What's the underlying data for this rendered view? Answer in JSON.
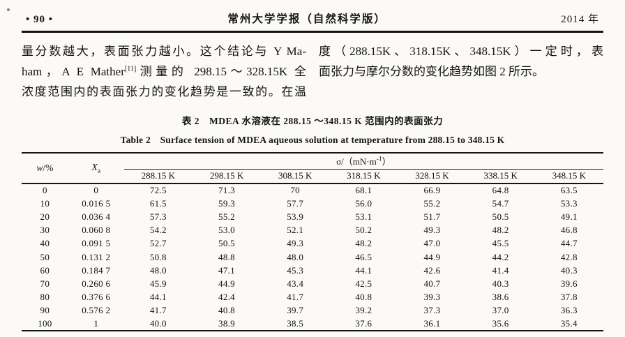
{
  "header": {
    "page_number": "• 90 •",
    "journal_title": "常州大学学报（自然科学版）",
    "year": "2014 年"
  },
  "body": {
    "left": {
      "line1": "量分数越大，表面张力越小。这个结论与 Y Ma-",
      "line2_pre": "ham，A E Mather",
      "line2_sup": "[11]",
      "line2_post": "测量的 298.15～328.15K 全",
      "line3": "浓度范围内的表面张力的变化趋势是一致的。在温"
    },
    "right": {
      "line1": "度（288.15K、318.15K、348.15K）一定时，表",
      "line2": "面张力与摩尔分数的变化趋势如图 2 所示。"
    }
  },
  "table": {
    "caption_zh": "表 2　MDEA 水溶液在 288.15 ～348.15 K 范围内的表面张力",
    "caption_en": "Table 2　Surface tension of MDEA aqueous solution at temperature from 288.15 to 348.15 K",
    "header": {
      "w_base": "w",
      "w_unit": "/%",
      "x_base": "X",
      "x_sub": "a",
      "sigma_pre": "σ/（mN·m",
      "sigma_sup": "-1",
      "sigma_post": "）"
    },
    "temp_headers": [
      "288.15 K",
      "298.15 K",
      "308.15 K",
      "318.15 K",
      "328.15 K",
      "338.15 K",
      "348.15 K"
    ],
    "rows": [
      [
        "0",
        "0",
        "72.5",
        "71.3",
        "70",
        "68.1",
        "66.9",
        "64.8",
        "63.5"
      ],
      [
        "10",
        "0.016 5",
        "61.5",
        "59.3",
        "57.7",
        "56.0",
        "55.2",
        "54.7",
        "53.3"
      ],
      [
        "20",
        "0.036 4",
        "57.3",
        "55.2",
        "53.9",
        "53.1",
        "51.7",
        "50.5",
        "49.1"
      ],
      [
        "30",
        "0.060 8",
        "54.2",
        "53.0",
        "52.1",
        "50.2",
        "49.3",
        "48.2",
        "46.8"
      ],
      [
        "40",
        "0.091 5",
        "52.7",
        "50.5",
        "49.3",
        "48.2",
        "47.0",
        "45.5",
        "44.7"
      ],
      [
        "50",
        "0.131 2",
        "50.8",
        "48.8",
        "48.0",
        "46.5",
        "44.9",
        "44.2",
        "42.8"
      ],
      [
        "60",
        "0.184 7",
        "48.0",
        "47.1",
        "45.3",
        "44.1",
        "42.6",
        "41.4",
        "40.3"
      ],
      [
        "70",
        "0.260 6",
        "45.9",
        "44.9",
        "43.4",
        "42.5",
        "40.7",
        "40.3",
        "39.6"
      ],
      [
        "80",
        "0.376 6",
        "44.1",
        "42.4",
        "41.7",
        "40.8",
        "39.3",
        "38.6",
        "37.8"
      ],
      [
        "90",
        "0.576 2",
        "41.7",
        "40.8",
        "39.7",
        "39.2",
        "37.3",
        "37.0",
        "36.3"
      ],
      [
        "100",
        "1",
        "40.0",
        "38.9",
        "38.5",
        "37.6",
        "36.1",
        "35.6",
        "35.4"
      ]
    ]
  }
}
